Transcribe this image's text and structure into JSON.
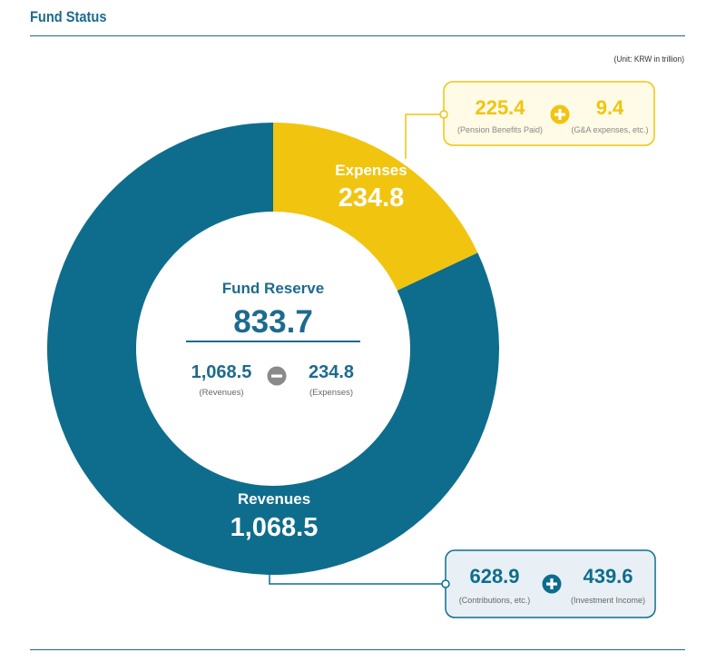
{
  "title": "Fund Status",
  "unit": "(Unit: KRW in trillion)",
  "colors": {
    "revenues": "#0e6d8d",
    "expenses": "#f1c40f",
    "accent": "#1d6a8f",
    "expense_box_fill": "#fffbe6",
    "revenue_box_fill": "#e8f0f5"
  },
  "chart_data": {
    "type": "pie",
    "style": "donut",
    "title": "Fund Status",
    "unit": "KRW in trillion",
    "slices": [
      {
        "label": "Expenses",
        "value": 234.8,
        "value_text": "234.8"
      },
      {
        "label": "Revenues",
        "value": 1068.5,
        "value_text": "1,068.5"
      }
    ],
    "center": {
      "label": "Fund Reserve",
      "value": 833.7,
      "value_text": "833.7",
      "left_value": "1,068.5",
      "left_label": "(Revenues)",
      "right_value": "234.8",
      "right_label": "(Expenses)"
    },
    "expense_breakdown": [
      {
        "value": 225.4,
        "value_text": "225.4",
        "label": "(Pension Benefits Paid)"
      },
      {
        "value": 9.4,
        "value_text": "9.4",
        "label": "(G&A expenses, etc.)"
      }
    ],
    "revenue_breakdown": [
      {
        "value": 628.9,
        "value_text": "628.9",
        "label": "(Contributions, etc.)"
      },
      {
        "value": 439.6,
        "value_text": "439.6",
        "label": "(Investment Income)"
      }
    ]
  }
}
